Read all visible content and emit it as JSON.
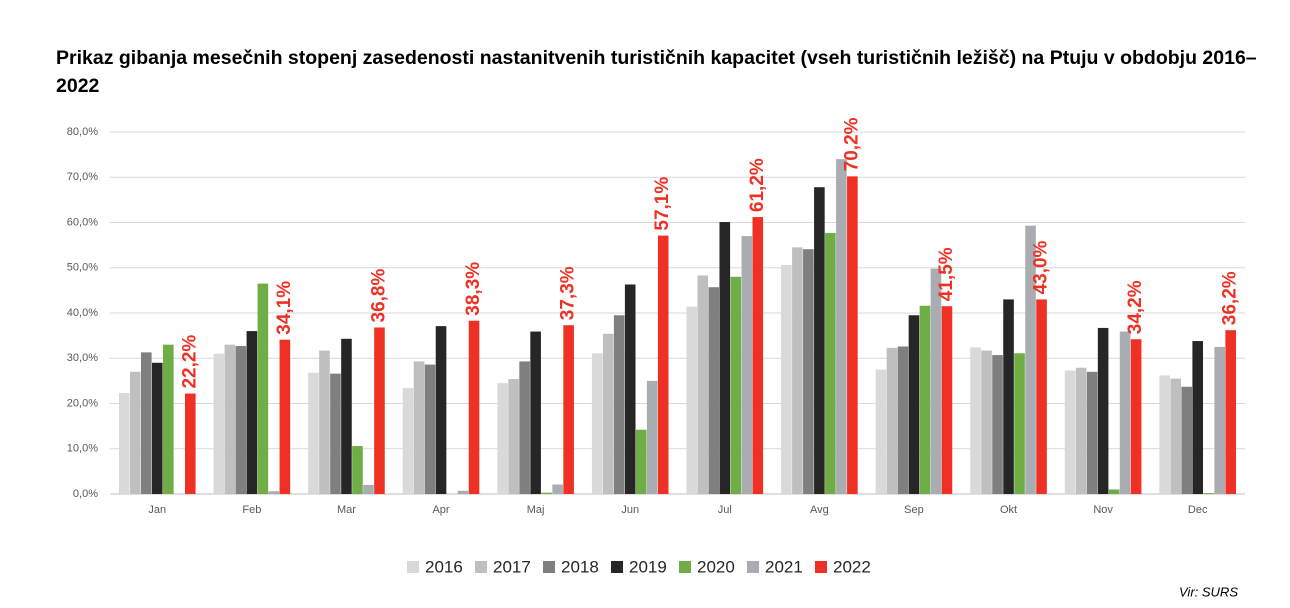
{
  "chart_data": {
    "type": "bar",
    "title": "Prikaz gibanja mesečnih stopenj zasedenosti nastanitvenih turističnih kapacitet (vseh turističnih ležišč) na Ptuju v obdobju 2016–2022",
    "categories": [
      "Jan",
      "Feb",
      "Mar",
      "Apr",
      "Maj",
      "Jun",
      "Jul",
      "Avg",
      "Sep",
      "Okt",
      "Nov",
      "Dec"
    ],
    "series": [
      {
        "name": "2016",
        "color": "#d9d9d9",
        "values": [
          22.3,
          31.0,
          26.8,
          23.4,
          24.5,
          31.1,
          41.4,
          50.6,
          27.5,
          32.4,
          27.3,
          26.2
        ]
      },
      {
        "name": "2017",
        "color": "#bfbfbf",
        "values": [
          27.0,
          33.0,
          31.7,
          29.3,
          25.4,
          35.4,
          48.3,
          54.5,
          32.3,
          31.7,
          27.9,
          25.5
        ]
      },
      {
        "name": "2018",
        "color": "#7f7f7f",
        "values": [
          31.3,
          32.7,
          26.6,
          28.6,
          29.3,
          39.5,
          45.7,
          54.1,
          32.6,
          30.7,
          27.0,
          23.7
        ]
      },
      {
        "name": "2019",
        "color": "#262626",
        "values": [
          29.0,
          36.0,
          34.3,
          37.1,
          35.9,
          46.3,
          60.1,
          67.8,
          39.5,
          43.0,
          36.7,
          33.8
        ]
      },
      {
        "name": "2020",
        "color": "#70ad47",
        "values": [
          33.0,
          46.5,
          10.6,
          0,
          0.3,
          14.2,
          48.0,
          57.7,
          41.6,
          31.1,
          1.0,
          0.2
        ]
      },
      {
        "name": "2021",
        "color": "#a9adb1",
        "values": [
          0,
          0.6,
          2.0,
          0.7,
          2.1,
          25.0,
          57.0,
          74.0,
          49.8,
          59.3,
          35.9,
          32.5
        ]
      },
      {
        "name": "2022",
        "color": "#ee3124",
        "values": [
          22.2,
          34.1,
          36.8,
          38.3,
          37.3,
          57.1,
          61.2,
          70.2,
          41.5,
          43.0,
          34.2,
          36.2
        ],
        "value_labels": [
          "22,2%",
          "34,1%",
          "36,8%",
          "38,3%",
          "37,3%",
          "57,1%",
          "61,2%",
          "70,2%",
          "41,5%",
          "43,0%",
          "34,2%",
          "36,2%"
        ]
      }
    ],
    "ylim": [
      0,
      80
    ],
    "yticks": [
      {
        "value": 0,
        "label": "0,0%"
      },
      {
        "value": 10,
        "label": "10,0%"
      },
      {
        "value": 20,
        "label": "20,0%"
      },
      {
        "value": 30,
        "label": "30,0%"
      },
      {
        "value": 40,
        "label": "40,0%"
      },
      {
        "value": 50,
        "label": "50,0%"
      },
      {
        "value": 60,
        "label": "60,0%"
      },
      {
        "value": 70,
        "label": "70,0%"
      },
      {
        "value": 80,
        "label": "80,0%"
      }
    ],
    "grid": true,
    "legend": "bottom",
    "source": "Vir: SURS"
  }
}
